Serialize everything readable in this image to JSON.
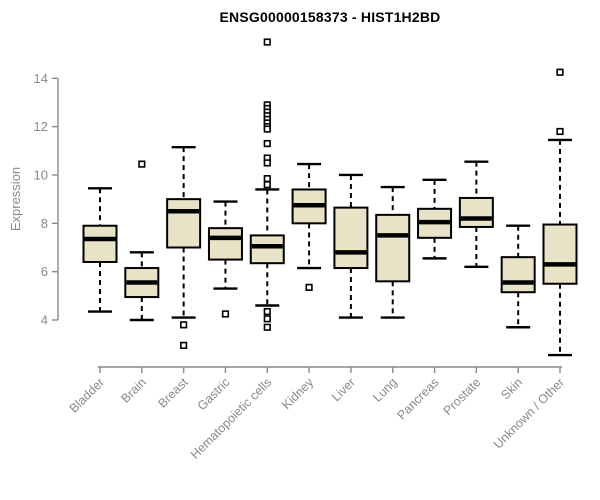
{
  "chart_data": {
    "type": "boxplot",
    "title": "ENSG00000158373 - HIST1H2BD",
    "ylabel": "Expression",
    "xlabel": "",
    "ylim": [
      4,
      14
    ],
    "yticks": [
      4,
      6,
      8,
      10,
      12,
      14
    ],
    "grid": false,
    "legend": "none",
    "categories": [
      "Bladder",
      "Brain",
      "Breast",
      "Gastric",
      "Hematopoietic cells",
      "Kidney",
      "Liver",
      "Lung",
      "Pancreas",
      "Prostate",
      "Skin",
      "Unknown / Other"
    ],
    "series": [
      {
        "name": "Bladder",
        "low": 4.35,
        "q1": 6.4,
        "median": 7.35,
        "q3": 7.9,
        "high": 9.45,
        "outliers": []
      },
      {
        "name": "Brain",
        "low": 4.0,
        "q1": 4.95,
        "median": 5.55,
        "q3": 6.15,
        "high": 6.8,
        "outliers": [
          10.45
        ]
      },
      {
        "name": "Breast",
        "low": 4.1,
        "q1": 7.0,
        "median": 8.5,
        "q3": 9.0,
        "high": 11.15,
        "outliers": [
          3.8,
          2.95
        ]
      },
      {
        "name": "Gastric",
        "low": 5.3,
        "q1": 6.5,
        "median": 7.4,
        "q3": 7.8,
        "high": 8.9,
        "outliers": [
          4.25
        ]
      },
      {
        "name": "Hematopoietic cells",
        "low": 4.6,
        "q1": 6.35,
        "median": 7.05,
        "q3": 7.5,
        "high": 9.4,
        "outliers": [
          15.5,
          12.9,
          12.75,
          12.6,
          12.45,
          12.3,
          12.15,
          12.0,
          11.9,
          11.3,
          10.7,
          10.5,
          9.85,
          9.6,
          4.35,
          4.05,
          3.7
        ]
      },
      {
        "name": "Kidney",
        "low": 6.15,
        "q1": 8.0,
        "median": 8.75,
        "q3": 9.4,
        "high": 10.45,
        "outliers": [
          5.35
        ]
      },
      {
        "name": "Liver",
        "low": 4.1,
        "q1": 6.15,
        "median": 6.8,
        "q3": 8.65,
        "high": 10.0,
        "outliers": []
      },
      {
        "name": "Lung",
        "low": 4.1,
        "q1": 5.6,
        "median": 7.5,
        "q3": 8.35,
        "high": 9.5,
        "outliers": []
      },
      {
        "name": "Pancreas",
        "low": 6.55,
        "q1": 7.4,
        "median": 8.05,
        "q3": 8.6,
        "high": 9.8,
        "outliers": []
      },
      {
        "name": "Prostate",
        "low": 6.2,
        "q1": 7.85,
        "median": 8.2,
        "q3": 9.05,
        "high": 10.55,
        "outliers": []
      },
      {
        "name": "Skin",
        "low": 3.7,
        "q1": 5.15,
        "median": 5.55,
        "q3": 6.6,
        "high": 7.9,
        "outliers": []
      },
      {
        "name": "Unknown / Other",
        "low": 2.55,
        "q1": 5.5,
        "median": 6.3,
        "q3": 7.95,
        "high": 11.45,
        "outliers": [
          14.25,
          11.8
        ]
      }
    ],
    "colors": {
      "box_fill": "#E8E3C6",
      "box_stroke": "#000000",
      "median": "#000000",
      "axis": "#8A8A8A",
      "tick_label": "#8A8A8A",
      "title": "#000000",
      "outlier_fill": "#FFFFFF"
    }
  }
}
